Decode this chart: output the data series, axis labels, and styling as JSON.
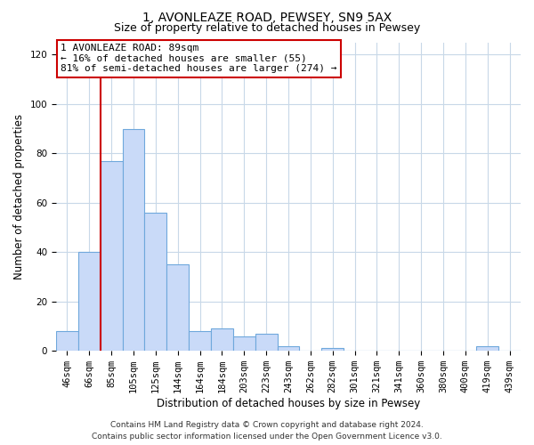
{
  "title": "1, AVONLEAZE ROAD, PEWSEY, SN9 5AX",
  "subtitle": "Size of property relative to detached houses in Pewsey",
  "xlabel": "Distribution of detached houses by size in Pewsey",
  "ylabel": "Number of detached properties",
  "bar_labels": [
    "46sqm",
    "66sqm",
    "85sqm",
    "105sqm",
    "125sqm",
    "144sqm",
    "164sqm",
    "184sqm",
    "203sqm",
    "223sqm",
    "243sqm",
    "262sqm",
    "282sqm",
    "301sqm",
    "321sqm",
    "341sqm",
    "360sqm",
    "380sqm",
    "400sqm",
    "419sqm",
    "439sqm"
  ],
  "bar_values": [
    8,
    40,
    77,
    90,
    56,
    35,
    8,
    9,
    6,
    7,
    2,
    0,
    1,
    0,
    0,
    0,
    0,
    0,
    0,
    2,
    0
  ],
  "bar_color": "#c9daf8",
  "bar_edge_color": "#6fa8dc",
  "vline_color": "#cc0000",
  "ylim": [
    0,
    125
  ],
  "yticks": [
    0,
    20,
    40,
    60,
    80,
    100,
    120
  ],
  "annotation_line1": "1 AVONLEAZE ROAD: 89sqm",
  "annotation_line2": "← 16% of detached houses are smaller (55)",
  "annotation_line3": "81% of semi-detached houses are larger (274) →",
  "footer_line1": "Contains HM Land Registry data © Crown copyright and database right 2024.",
  "footer_line2": "Contains public sector information licensed under the Open Government Licence v3.0.",
  "bg_color": "#ffffff",
  "grid_color": "#c8d8e8",
  "title_fontsize": 10,
  "subtitle_fontsize": 9,
  "axis_label_fontsize": 8.5,
  "tick_fontsize": 7.5,
  "annotation_fontsize": 8,
  "footer_fontsize": 6.5
}
